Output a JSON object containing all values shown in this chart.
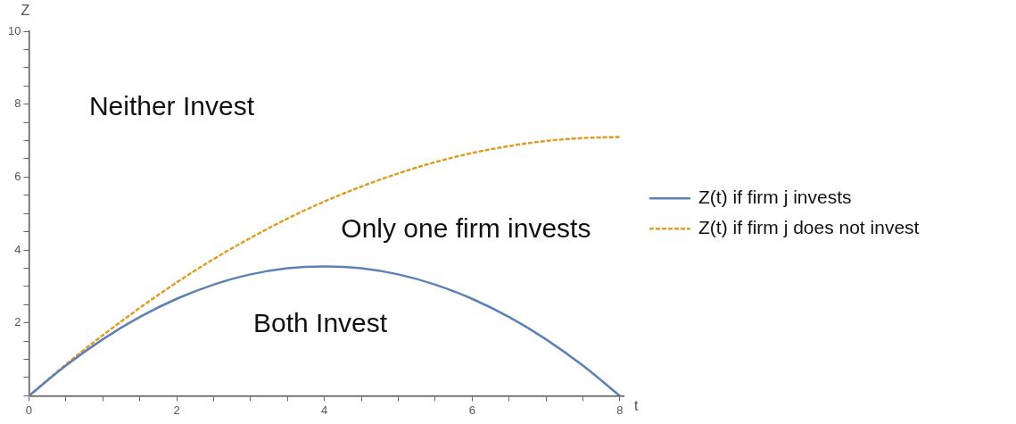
{
  "chart_data": {
    "type": "line",
    "xlabel": "t",
    "ylabel": "Z",
    "x": [
      0,
      0.5,
      1,
      1.5,
      2,
      2.5,
      3,
      3.5,
      4,
      4.5,
      5,
      5.5,
      6,
      6.5,
      7,
      7.5,
      8
    ],
    "series": [
      {
        "name": "Z(t) if firm j invests",
        "color": "#5e81b5",
        "line_style": "solid",
        "values": [
          0,
          0.83,
          1.55,
          2.16,
          2.66,
          3.05,
          3.33,
          3.5,
          3.55,
          3.5,
          3.33,
          3.05,
          2.66,
          2.16,
          1.55,
          0.83,
          0
        ]
      },
      {
        "name": "Z(t) if firm j does not invest",
        "color": "#e19c24",
        "line_style": "dotted",
        "values": [
          0,
          0.86,
          1.66,
          2.41,
          3.11,
          3.75,
          4.33,
          4.86,
          5.33,
          5.74,
          6.1,
          6.41,
          6.66,
          6.85,
          6.99,
          7.07,
          7.1
        ]
      }
    ],
    "xlim": [
      0,
      8.05
    ],
    "ylim": [
      0,
      10
    ],
    "xticks": [
      0,
      {
        "value": 0.5,
        "label": null
      },
      {
        "value": 1,
        "label": null
      },
      {
        "value": 1.5,
        "label": null
      },
      2,
      {
        "value": 2.5,
        "label": null
      },
      {
        "value": 3,
        "label": null
      },
      {
        "value": 3.5,
        "label": null
      },
      4,
      {
        "value": 4.5,
        "label": null
      },
      {
        "value": 5,
        "label": null
      },
      {
        "value": 5.5,
        "label": null
      },
      6,
      {
        "value": 6.5,
        "label": null
      },
      {
        "value": 7,
        "label": null
      },
      {
        "value": 7.5,
        "label": null
      },
      8
    ],
    "yticks": [
      {
        "value": 0,
        "label": null
      },
      {
        "value": 0.5,
        "label": null
      },
      {
        "value": 1,
        "label": null
      },
      {
        "value": 1.5,
        "label": null
      },
      2,
      {
        "value": 2.5,
        "label": null
      },
      {
        "value": 3,
        "label": null
      },
      {
        "value": 3.5,
        "label": null
      },
      4,
      {
        "value": 4.5,
        "label": null
      },
      {
        "value": 5,
        "label": null
      },
      {
        "value": 5.5,
        "label": null
      },
      6,
      {
        "value": 6.5,
        "label": null
      },
      {
        "value": 7,
        "label": null
      },
      {
        "value": 7.5,
        "label": null
      },
      8,
      {
        "value": 8.5,
        "label": null
      },
      {
        "value": 9,
        "label": null
      },
      {
        "value": 9.5,
        "label": null
      },
      10
    ],
    "annotations": [
      "Neither Invest",
      "Only one firm invests",
      "Both Invest"
    ],
    "grid": false,
    "legend": "right",
    "marker": "none"
  }
}
